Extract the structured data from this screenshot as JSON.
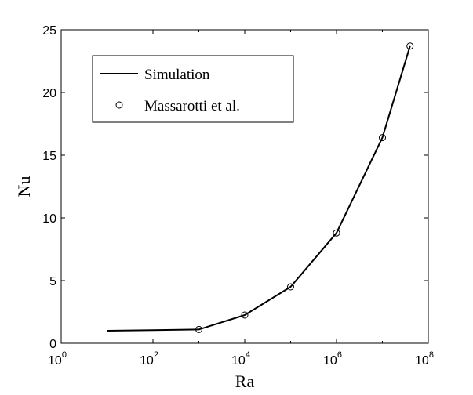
{
  "chart_data": {
    "type": "line",
    "xscale": "log",
    "xlim": [
      1,
      100000000
    ],
    "ylim": [
      0,
      25
    ],
    "xlabel": "Ra",
    "ylabel": "Nu",
    "grid": false,
    "legend_position": "top-left",
    "x_ticks": [
      {
        "base": "10",
        "exp": "0",
        "value": 1
      },
      {
        "base": "10",
        "exp": "2",
        "value": 100
      },
      {
        "base": "10",
        "exp": "4",
        "value": 10000
      },
      {
        "base": "10",
        "exp": "6",
        "value": 1000000
      },
      {
        "base": "10",
        "exp": "8",
        "value": 100000000
      }
    ],
    "y_ticks": [
      "0",
      "5",
      "10",
      "15",
      "20",
      "25"
    ],
    "series": [
      {
        "name": "Simulation",
        "style": "line",
        "color": "#000000",
        "x": [
          10,
          100,
          1000,
          10000,
          100000,
          1000000,
          10000000,
          40000000
        ],
        "y": [
          1.0,
          1.05,
          1.1,
          2.25,
          4.5,
          8.8,
          16.4,
          23.7
        ]
      },
      {
        "name": "Massarotti et al.",
        "style": "marker-circle",
        "color": "#000000",
        "x": [
          1000,
          10000,
          100000,
          1000000,
          10000000,
          40000000
        ],
        "y": [
          1.1,
          2.25,
          4.5,
          8.8,
          16.4,
          23.7
        ]
      }
    ]
  }
}
